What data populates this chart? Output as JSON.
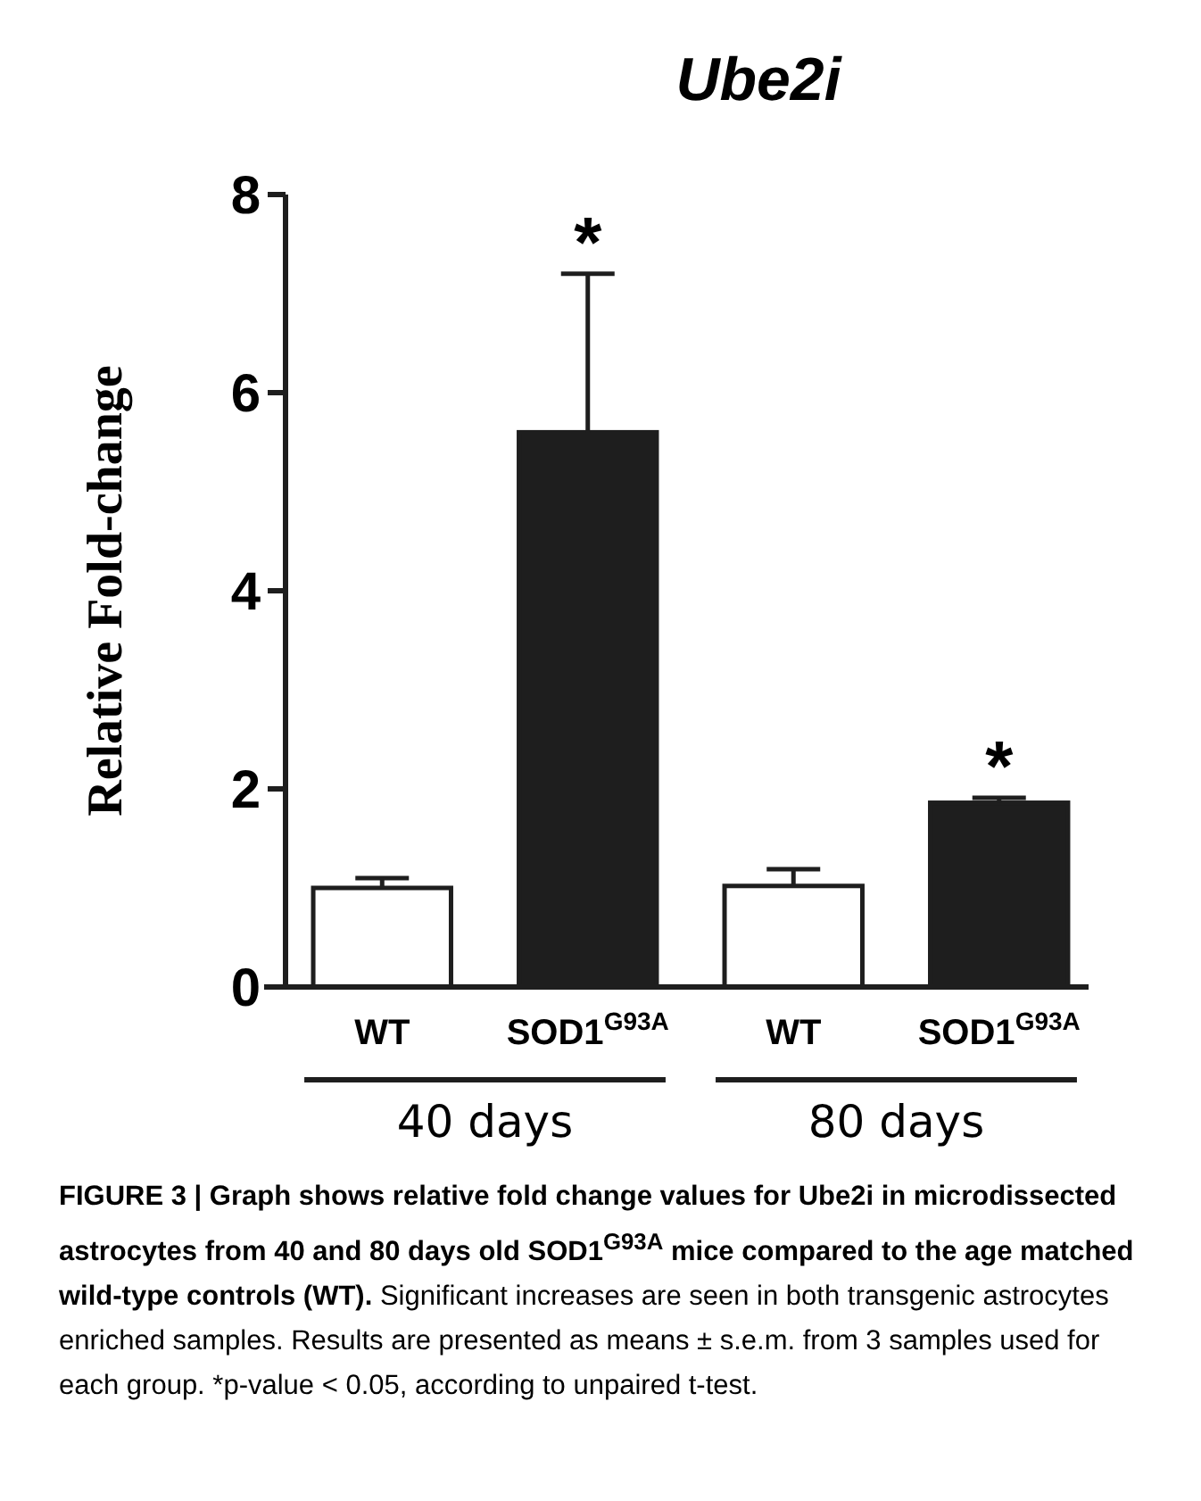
{
  "chart_data": {
    "type": "bar",
    "title": "Ube2i",
    "ylabel": "Relative Fold-change",
    "categories": [
      "WT",
      "SOD1$^{G93A}$",
      "WT",
      "SOD1$^{G93A}$"
    ],
    "values": [
      1.0,
      5.6,
      1.02,
      1.86
    ],
    "errors": [
      0.1,
      1.6,
      0.17,
      0.05
    ],
    "colors": [
      "#ffffff",
      "#1e1e1e",
      "#ffffff",
      "#1e1e1e"
    ],
    "ylim": [
      0,
      8
    ],
    "yticks": [
      0,
      2,
      4,
      6,
      8
    ],
    "annotations": [
      "*",
      "*",
      "40 days",
      "80 days",
      "FIGURE 3 | Graph shows relative fold change values for Ube2i in microdissected astrocytes from 40 and 80 days old SOD1$^{G93A}$ mice compared to the age matched wild-type controls (WT).",
      "Significant increases are seen in both transgenic astrocytes enriched samples. Results are presented as means ± s.e.m. from 3 samples used for each group. *p-value < 0.05, according to unpaired t-test."
    ]
  }
}
